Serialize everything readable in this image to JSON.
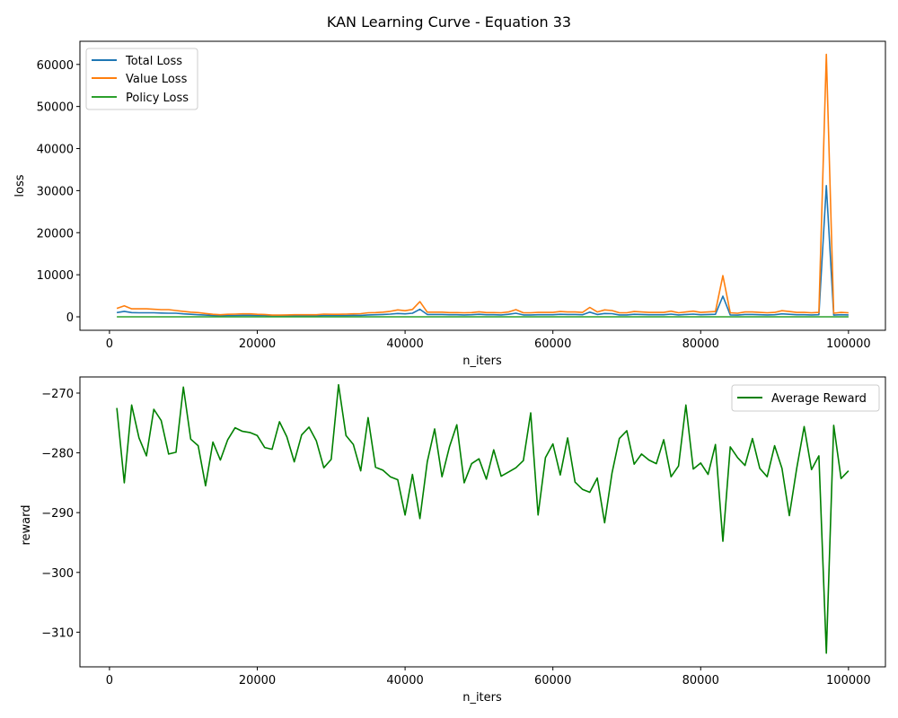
{
  "figure": {
    "title": "KAN Learning Curve - Equation 33"
  },
  "chart_data": [
    {
      "type": "line",
      "xlabel": "n_iters",
      "ylabel": "loss",
      "xlim": [
        -4000,
        105000
      ],
      "ylim": [
        -3200,
        65500
      ],
      "xticks": [
        0,
        20000,
        40000,
        60000,
        80000,
        100000
      ],
      "xtick_labels": [
        "0",
        "20000",
        "40000",
        "60000",
        "80000",
        "100000"
      ],
      "yticks": [
        0,
        10000,
        20000,
        30000,
        40000,
        50000,
        60000
      ],
      "ytick_labels": [
        "0",
        "10000",
        "20000",
        "30000",
        "40000",
        "50000",
        "60000"
      ],
      "legend": "top-left",
      "grid": false,
      "x": [
        1000,
        2000,
        3000,
        4000,
        5000,
        6000,
        7000,
        8000,
        9000,
        10000,
        11000,
        12000,
        13000,
        14000,
        15000,
        16000,
        17000,
        18000,
        19000,
        20000,
        21000,
        22000,
        23000,
        24000,
        25000,
        26000,
        27000,
        28000,
        29000,
        30000,
        31000,
        32000,
        33000,
        34000,
        35000,
        36000,
        37000,
        38000,
        39000,
        40000,
        41000,
        42000,
        43000,
        44000,
        45000,
        46000,
        47000,
        48000,
        49000,
        50000,
        51000,
        52000,
        53000,
        54000,
        55000,
        56000,
        57000,
        58000,
        59000,
        60000,
        61000,
        62000,
        63000,
        64000,
        65000,
        66000,
        67000,
        68000,
        69000,
        70000,
        71000,
        72000,
        73000,
        74000,
        75000,
        76000,
        77000,
        78000,
        79000,
        80000,
        81000,
        82000,
        83000,
        84000,
        85000,
        86000,
        87000,
        88000,
        89000,
        90000,
        91000,
        92000,
        93000,
        94000,
        95000,
        96000,
        97000,
        98000,
        99000,
        100000
      ],
      "series": [
        {
          "name": "Total Loss",
          "color": "#1f77b4",
          "values": [
            1000,
            1300,
            1000,
            950,
            950,
            950,
            900,
            850,
            850,
            700,
            600,
            500,
            400,
            300,
            250,
            300,
            300,
            350,
            350,
            300,
            300,
            200,
            200,
            200,
            250,
            250,
            250,
            250,
            300,
            300,
            300,
            300,
            350,
            350,
            450,
            500,
            550,
            650,
            800,
            700,
            850,
            1800,
            550,
            550,
            550,
            500,
            500,
            450,
            500,
            600,
            500,
            500,
            450,
            600,
            850,
            450,
            450,
            500,
            500,
            500,
            600,
            550,
            550,
            500,
            1100,
            550,
            800,
            750,
            450,
            450,
            600,
            550,
            500,
            500,
            500,
            650,
            450,
            550,
            650,
            500,
            550,
            600,
            4900,
            450,
            400,
            550,
            550,
            500,
            450,
            500,
            700,
            600,
            500,
            500,
            450,
            500,
            31200,
            400,
            500,
            450
          ]
        },
        {
          "name": "Value Loss",
          "color": "#ff7f0e",
          "values": [
            2000,
            2600,
            1900,
            1900,
            1900,
            1800,
            1700,
            1700,
            1500,
            1300,
            1100,
            1000,
            800,
            600,
            500,
            600,
            650,
            700,
            700,
            600,
            550,
            400,
            400,
            450,
            500,
            500,
            500,
            500,
            650,
            600,
            600,
            650,
            700,
            750,
            950,
            1000,
            1100,
            1300,
            1650,
            1450,
            1750,
            3600,
            1100,
            1100,
            1100,
            1000,
            1000,
            950,
            1000,
            1200,
            1000,
            1000,
            950,
            1150,
            1700,
            950,
            950,
            1050,
            1050,
            1050,
            1250,
            1150,
            1150,
            1050,
            2250,
            1150,
            1650,
            1500,
            950,
            950,
            1250,
            1150,
            1050,
            1050,
            1050,
            1350,
            950,
            1150,
            1350,
            1050,
            1150,
            1250,
            9800,
            950,
            850,
            1150,
            1150,
            1050,
            950,
            1050,
            1450,
            1250,
            1050,
            1050,
            950,
            1050,
            62400,
            850,
            1050,
            950
          ]
        },
        {
          "name": "Policy Loss",
          "color": "#2ca02c",
          "values": [
            5,
            5,
            5,
            5,
            5,
            5,
            5,
            5,
            5,
            5,
            5,
            5,
            5,
            5,
            5,
            5,
            5,
            5,
            5,
            5,
            5,
            5,
            5,
            5,
            5,
            5,
            5,
            5,
            5,
            5,
            5,
            5,
            5,
            5,
            5,
            5,
            5,
            5,
            5,
            5,
            5,
            5,
            5,
            5,
            5,
            5,
            5,
            5,
            5,
            5,
            5,
            5,
            5,
            5,
            5,
            5,
            5,
            5,
            5,
            5,
            5,
            5,
            5,
            5,
            5,
            5,
            5,
            5,
            5,
            5,
            5,
            5,
            5,
            5,
            5,
            5,
            5,
            5,
            5,
            5,
            5,
            5,
            5,
            5,
            5,
            5,
            5,
            5,
            5,
            5,
            5,
            5,
            5,
            5,
            5,
            5,
            5,
            5,
            5,
            5
          ]
        }
      ]
    },
    {
      "type": "line",
      "xlabel": "n_iters",
      "ylabel": "reward",
      "xlim": [
        -4000,
        105000
      ],
      "ylim": [
        -315.8,
        -267.3
      ],
      "xticks": [
        0,
        20000,
        40000,
        60000,
        80000,
        100000
      ],
      "xtick_labels": [
        "0",
        "20000",
        "40000",
        "60000",
        "80000",
        "100000"
      ],
      "yticks": [
        -310,
        -300,
        -290,
        -280,
        -270
      ],
      "ytick_labels": [
        "−310",
        "−300",
        "−290",
        "−280",
        "−270"
      ],
      "legend": "top-right",
      "grid": false,
      "x": [
        1000,
        2000,
        3000,
        4000,
        5000,
        6000,
        7000,
        8000,
        9000,
        10000,
        11000,
        12000,
        13000,
        14000,
        15000,
        16000,
        17000,
        18000,
        19000,
        20000,
        21000,
        22000,
        23000,
        24000,
        25000,
        26000,
        27000,
        28000,
        29000,
        30000,
        31000,
        32000,
        33000,
        34000,
        35000,
        36000,
        37000,
        38000,
        39000,
        40000,
        41000,
        42000,
        43000,
        44000,
        45000,
        46000,
        47000,
        48000,
        49000,
        50000,
        51000,
        52000,
        53000,
        54000,
        55000,
        56000,
        57000,
        58000,
        59000,
        60000,
        61000,
        62000,
        63000,
        64000,
        65000,
        66000,
        67000,
        68000,
        69000,
        70000,
        71000,
        72000,
        73000,
        74000,
        75000,
        76000,
        77000,
        78000,
        79000,
        80000,
        81000,
        82000,
        83000,
        84000,
        85000,
        86000,
        87000,
        88000,
        89000,
        90000,
        91000,
        92000,
        93000,
        94000,
        95000,
        96000,
        97000,
        98000,
        99000,
        100000
      ],
      "series": [
        {
          "name": "Average Reward",
          "color": "#008000",
          "values": [
            -272.5,
            -285.0,
            -272.0,
            -277.5,
            -280.5,
            -272.7,
            -274.6,
            -280.2,
            -279.9,
            -269.0,
            -277.7,
            -278.8,
            -285.5,
            -278.2,
            -281.2,
            -277.8,
            -275.8,
            -276.4,
            -276.6,
            -277.1,
            -279.1,
            -279.4,
            -274.8,
            -277.3,
            -281.5,
            -277.0,
            -275.7,
            -278.0,
            -282.5,
            -281.1,
            -268.6,
            -277.1,
            -278.6,
            -283.0,
            -274.1,
            -282.4,
            -282.9,
            -284.0,
            -284.5,
            -290.4,
            -283.6,
            -291.0,
            -281.5,
            -276.0,
            -284.0,
            -279.0,
            -275.3,
            -285.0,
            -281.8,
            -281.0,
            -284.4,
            -279.5,
            -283.9,
            -283.2,
            -282.5,
            -281.3,
            -273.3,
            -290.4,
            -280.8,
            -278.5,
            -283.7,
            -277.5,
            -284.9,
            -286.1,
            -286.6,
            -284.2,
            -291.7,
            -283.4,
            -277.6,
            -276.3,
            -281.9,
            -280.2,
            -281.2,
            -281.8,
            -277.8,
            -284.0,
            -282.2,
            -272.0,
            -282.7,
            -281.7,
            -283.6,
            -278.6,
            -294.8,
            -279.0,
            -280.8,
            -282.1,
            -277.6,
            -282.6,
            -284.0,
            -278.8,
            -282.6,
            -290.5,
            -282.6,
            -275.6,
            -282.8,
            -280.5,
            -313.5,
            -275.4,
            -284.3,
            -283.0
          ]
        }
      ]
    }
  ]
}
